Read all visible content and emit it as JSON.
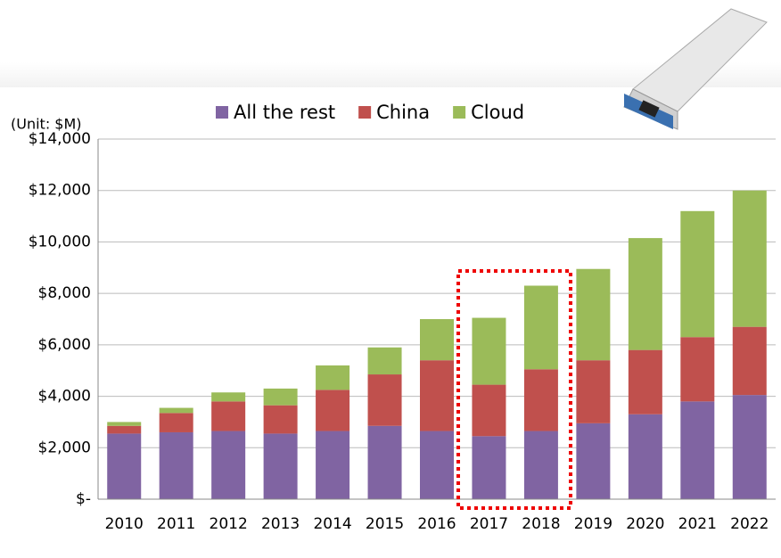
{
  "chart_data": {
    "type": "stacked_bar",
    "unit_label": "(Unit: $M)",
    "categories": [
      "2010",
      "2011",
      "2012",
      "2013",
      "2014",
      "2015",
      "2016",
      "2017",
      "2018",
      "2019",
      "2020",
      "2021",
      "2022"
    ],
    "series": [
      {
        "name": "All the rest",
        "color": "#8064a2",
        "values": [
          2550,
          2600,
          2650,
          2550,
          2650,
          2850,
          2650,
          2450,
          2650,
          2950,
          3300,
          3800,
          4050
        ]
      },
      {
        "name": "China",
        "color": "#c0504d",
        "values": [
          300,
          750,
          1150,
          1100,
          1600,
          2000,
          2750,
          2000,
          2400,
          2450,
          2500,
          2500,
          2650
        ]
      },
      {
        "name": "Cloud",
        "color": "#9bbb59",
        "values": [
          150,
          200,
          350,
          650,
          950,
          1050,
          1600,
          2600,
          3250,
          3550,
          4350,
          4900,
          5300
        ]
      }
    ],
    "ylim": [
      0,
      14000
    ],
    "yticks": [
      {
        "value": 0,
        "label": "$-"
      },
      {
        "value": 2000,
        "label": "$2,000"
      },
      {
        "value": 4000,
        "label": "$4,000"
      },
      {
        "value": 6000,
        "label": "$6,000"
      },
      {
        "value": 8000,
        "label": "$8,000"
      },
      {
        "value": 10000,
        "label": "$10,000"
      },
      {
        "value": 12000,
        "label": "$12,000"
      },
      {
        "value": 14000,
        "label": "$14,000"
      }
    ],
    "grid": true
  }
}
